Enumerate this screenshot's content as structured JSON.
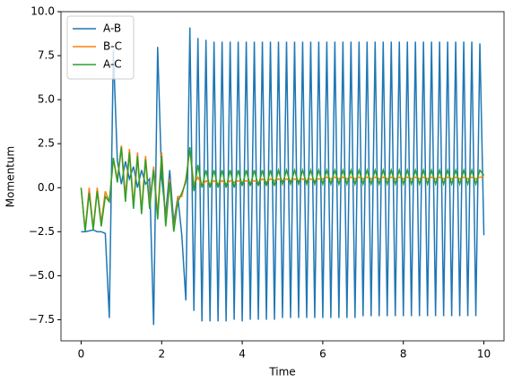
{
  "chart_data": {
    "type": "line",
    "xlabel": "Time",
    "ylabel": "Momentum",
    "x": [
      0,
      0.1,
      0.2,
      0.3,
      0.4,
      0.5,
      0.6,
      0.7,
      0.8,
      0.9,
      1,
      1.1,
      1.2,
      1.3,
      1.4,
      1.5,
      1.6,
      1.7,
      1.8,
      1.9,
      2,
      2.1,
      2.2,
      2.3,
      2.4,
      2.5,
      2.6,
      2.7,
      2.8,
      2.9,
      3,
      3.1,
      3.2,
      3.3,
      3.4,
      3.5,
      3.6,
      3.7,
      3.8,
      3.9,
      4,
      4.1,
      4.2,
      4.3,
      4.4,
      4.5,
      4.6,
      4.7,
      4.8,
      4.9,
      5,
      5.1,
      5.2,
      5.3,
      5.4,
      5.5,
      5.6,
      5.7,
      5.8,
      5.9,
      6,
      6.1,
      6.2,
      6.3,
      6.4,
      6.5,
      6.6,
      6.7,
      6.8,
      6.9,
      7,
      7.1,
      7.2,
      7.3,
      7.4,
      7.5,
      7.6,
      7.7,
      7.8,
      7.9,
      8,
      8.1,
      8.2,
      8.3,
      8.4,
      8.5,
      8.6,
      8.7,
      8.8,
      8.9,
      9,
      9.1,
      9.2,
      9.3,
      9.4,
      9.5,
      9.6,
      9.7,
      9.8,
      9.9,
      10
    ],
    "series": [
      {
        "name": "A-B",
        "color": "#1f77b4",
        "values": [
          -2.5,
          -2.5,
          -2.45,
          -2.4,
          -2.5,
          -2.5,
          -2.6,
          -7.4,
          7.8,
          1.5,
          0.2,
          1.5,
          0.5,
          1.2,
          0.0,
          1.0,
          0.2,
          0.5,
          -7.8,
          8.0,
          0.5,
          -1.5,
          1.0,
          -2.0,
          -0.5,
          -2.7,
          -6.4,
          9.1,
          -7.0,
          8.5,
          -7.6,
          8.4,
          -7.6,
          8.3,
          -7.6,
          8.3,
          -7.6,
          8.3,
          -7.5,
          8.3,
          -7.6,
          8.3,
          -7.5,
          8.3,
          -7.5,
          8.3,
          -7.5,
          8.3,
          -7.5,
          8.3,
          -7.4,
          8.3,
          -7.4,
          8.3,
          -7.4,
          8.3,
          -7.4,
          8.3,
          -7.4,
          8.3,
          -7.4,
          8.3,
          -7.4,
          8.3,
          -7.4,
          8.3,
          -7.4,
          8.3,
          -7.4,
          8.3,
          -7.3,
          8.3,
          -7.3,
          8.3,
          -7.3,
          8.3,
          -7.3,
          8.3,
          -7.3,
          8.3,
          -7.3,
          8.3,
          -7.3,
          8.3,
          -7.3,
          8.3,
          -7.3,
          8.3,
          -7.3,
          8.3,
          -7.3,
          8.3,
          -7.3,
          8.3,
          -7.3,
          8.3,
          -7.3,
          8.3,
          -7.3,
          8.2,
          -2.7
        ]
      },
      {
        "name": "B-C",
        "color": "#ff7f0e",
        "values": [
          0,
          -2.4,
          0,
          -2.3,
          0,
          -2.0,
          -0.2,
          -0.8,
          1.6,
          0.5,
          2.4,
          -0.5,
          2.2,
          -1.0,
          2.0,
          -1.3,
          1.8,
          -1.0,
          1.2,
          -1.5,
          2.0,
          -2.0,
          0.5,
          -2.4,
          -0.5,
          -0.5,
          0.5,
          2.2,
          0.2,
          0.6,
          0.1,
          0.4,
          0.2,
          0.4,
          0.2,
          0.4,
          0.2,
          0.4,
          0.3,
          0.4,
          0.3,
          0.4,
          0.3,
          0.4,
          0.3,
          0.5,
          0.3,
          0.5,
          0.4,
          0.5,
          0.4,
          0.5,
          0.4,
          0.5,
          0.4,
          0.5,
          0.4,
          0.5,
          0.4,
          0.5,
          0.5,
          0.6,
          0.5,
          0.6,
          0.5,
          0.6,
          0.5,
          0.6,
          0.5,
          0.6,
          0.5,
          0.6,
          0.5,
          0.6,
          0.5,
          0.6,
          0.5,
          0.6,
          0.5,
          0.6,
          0.5,
          0.6,
          0.5,
          0.6,
          0.5,
          0.6,
          0.5,
          0.6,
          0.5,
          0.6,
          0.5,
          0.6,
          0.5,
          0.6,
          0.5,
          0.6,
          0.5,
          0.6,
          0.5,
          0.6,
          0.6
        ]
      },
      {
        "name": "A-C",
        "color": "#2ca02c",
        "values": [
          0,
          -2.5,
          -0.3,
          -2.4,
          -0.2,
          -2.2,
          -0.5,
          -0.8,
          1.7,
          0.3,
          2.3,
          -0.8,
          2.0,
          -1.2,
          1.8,
          -1.5,
          1.6,
          -1.2,
          1.0,
          -1.8,
          1.8,
          -2.2,
          0.3,
          -2.5,
          -0.8,
          -0.3,
          0.3,
          2.3,
          -0.2,
          1.3,
          0.0,
          1.0,
          0.0,
          1.0,
          0.0,
          1.0,
          0.0,
          1.0,
          0.0,
          1.0,
          0.1,
          1.0,
          0.1,
          1.0,
          0.1,
          1.0,
          0.1,
          1.0,
          0.1,
          1.0,
          0.2,
          1.0,
          0.2,
          1.0,
          0.2,
          1.0,
          0.2,
          1.0,
          0.2,
          1.0,
          0.2,
          1.0,
          0.2,
          1.0,
          0.2,
          1.0,
          0.2,
          1.0,
          0.2,
          1.0,
          0.2,
          1.0,
          0.2,
          1.0,
          0.2,
          1.0,
          0.2,
          1.0,
          0.2,
          1.0,
          0.2,
          1.0,
          0.2,
          1.0,
          0.2,
          1.0,
          0.2,
          1.0,
          0.2,
          1.0,
          0.2,
          1.0,
          0.2,
          1.0,
          0.2,
          1.0,
          0.2,
          1.0,
          0.2,
          1.0,
          0.7
        ]
      }
    ],
    "xlim": [
      -0.5,
      10.5
    ],
    "ylim": [
      -8.7,
      10
    ],
    "xticks": [
      0,
      2,
      4,
      6,
      8,
      10
    ],
    "yticks": [
      {
        "value": -7.5,
        "label": "−7.5"
      },
      {
        "value": -5,
        "label": "−5.0"
      },
      {
        "value": -2.5,
        "label": "−2.5"
      },
      {
        "value": 0,
        "label": "0.0"
      },
      2.5,
      {
        "value": 5,
        "label": "5.0"
      },
      7.5,
      {
        "value": 10,
        "label": "10.0"
      }
    ],
    "legend": "upper left"
  }
}
